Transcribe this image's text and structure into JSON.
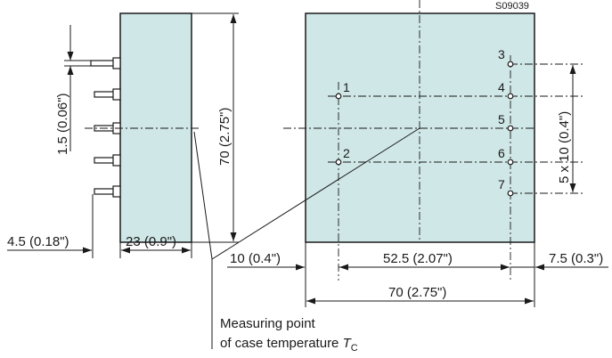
{
  "drawing_id": "S09039",
  "dimensions": {
    "pin_spacing": "1.5 (0.06\")",
    "side_height": "70 (2.75\")",
    "pin_overhang": "4.5 (0.18\")",
    "side_depth": "23 (0.9\")",
    "left_offset": "10 (0.4\")",
    "pin_column_distance": "52.5 (2.07\")",
    "right_offset": "7.5 (0.3\")",
    "front_width": "70 (2.75\")",
    "pin_pitch": "5 x 10 (0.4\")"
  },
  "pins": [
    "1",
    "2",
    "3",
    "4",
    "5",
    "6",
    "7"
  ],
  "caption": {
    "line1": "Measuring point",
    "line2_prefix": "of case temperature ",
    "symbol": "T",
    "subscript": "C"
  }
}
